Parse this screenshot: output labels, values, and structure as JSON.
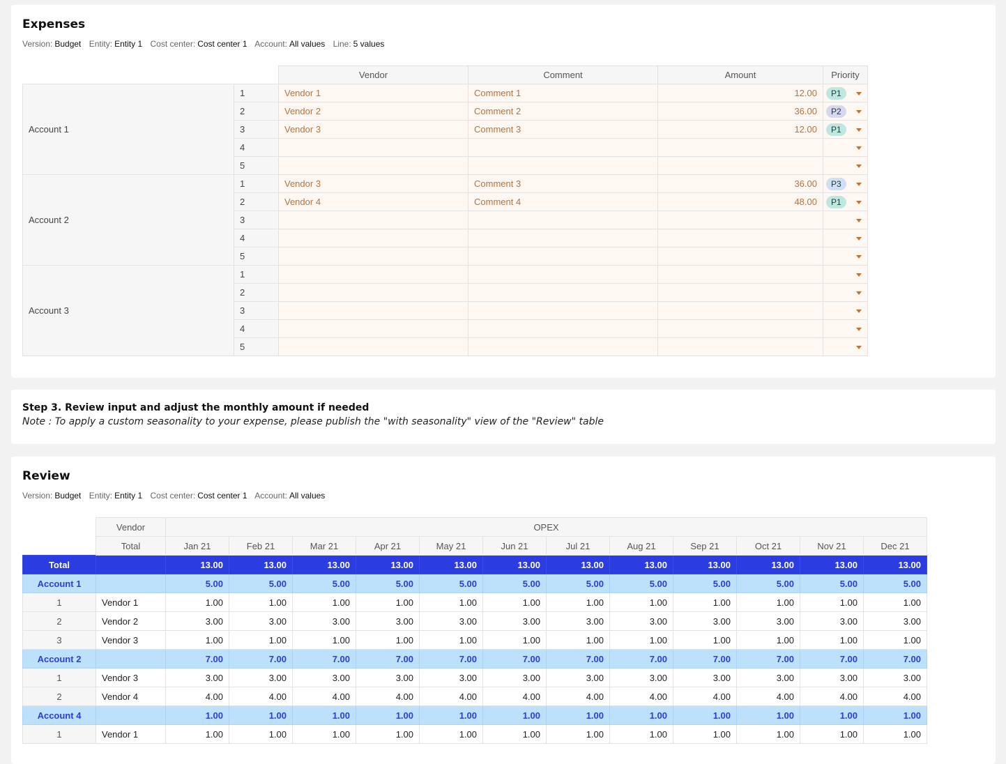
{
  "expenses": {
    "title": "Expenses",
    "filters": [
      {
        "label": "Version:",
        "value": "Budget"
      },
      {
        "label": "Entity:",
        "value": "Entity 1"
      },
      {
        "label": "Cost center:",
        "value": "Cost center 1"
      },
      {
        "label": "Account:",
        "value": "All values"
      },
      {
        "label": "Line:",
        "value": "5 values"
      }
    ],
    "columns": [
      "Vendor",
      "Comment",
      "Amount",
      "Priority"
    ],
    "accounts": [
      {
        "name": "Account 1",
        "lines": [
          {
            "line": "1",
            "vendor": "Vendor 1",
            "comment": "Comment 1",
            "amount": "12.00",
            "priority": "P1"
          },
          {
            "line": "2",
            "vendor": "Vendor 2",
            "comment": "Comment 2",
            "amount": "36.00",
            "priority": "P2"
          },
          {
            "line": "3",
            "vendor": "Vendor 3",
            "comment": "Comment 3",
            "amount": "12.00",
            "priority": "P1"
          },
          {
            "line": "4",
            "vendor": "",
            "comment": "",
            "amount": "",
            "priority": ""
          },
          {
            "line": "5",
            "vendor": "",
            "comment": "",
            "amount": "",
            "priority": ""
          }
        ]
      },
      {
        "name": "Account 2",
        "lines": [
          {
            "line": "1",
            "vendor": "Vendor 3",
            "comment": "Comment 3",
            "amount": "36.00",
            "priority": "P3"
          },
          {
            "line": "2",
            "vendor": "Vendor 4",
            "comment": "Comment 4",
            "amount": "48.00",
            "priority": "P1"
          },
          {
            "line": "3",
            "vendor": "",
            "comment": "",
            "amount": "",
            "priority": ""
          },
          {
            "line": "4",
            "vendor": "",
            "comment": "",
            "amount": "",
            "priority": ""
          },
          {
            "line": "5",
            "vendor": "",
            "comment": "",
            "amount": "",
            "priority": ""
          }
        ]
      },
      {
        "name": "Account 3",
        "lines": [
          {
            "line": "1",
            "vendor": "",
            "comment": "",
            "amount": "",
            "priority": ""
          },
          {
            "line": "2",
            "vendor": "",
            "comment": "",
            "amount": "",
            "priority": ""
          },
          {
            "line": "3",
            "vendor": "",
            "comment": "",
            "amount": "",
            "priority": ""
          },
          {
            "line": "4",
            "vendor": "",
            "comment": "",
            "amount": "",
            "priority": ""
          },
          {
            "line": "5",
            "vendor": "",
            "comment": "",
            "amount": "",
            "priority": ""
          }
        ]
      }
    ]
  },
  "step": {
    "title": "Step 3. Review input and adjust the monthly amount if needed",
    "note": "Note : To apply a custom seasonality to your expense, please publish the \"with seasonality\" view of the \"Review\" table"
  },
  "review": {
    "title": "Review",
    "filters": [
      {
        "label": "Version:",
        "value": "Budget"
      },
      {
        "label": "Entity:",
        "value": "Entity 1"
      },
      {
        "label": "Cost center:",
        "value": "Cost center 1"
      },
      {
        "label": "Account:",
        "value": "All values"
      }
    ],
    "vendor_header": "Vendor",
    "total_header": "Total",
    "group_header": "OPEX",
    "months": [
      "Jan 21",
      "Feb 21",
      "Mar 21",
      "Apr 21",
      "May 21",
      "Jun 21",
      "Jul 21",
      "Aug 21",
      "Sep 21",
      "Oct 21",
      "Nov 21",
      "Dec 21"
    ],
    "rows": [
      {
        "kind": "total",
        "label": "Total",
        "vendor": "",
        "values": [
          "13.00",
          "13.00",
          "13.00",
          "13.00",
          "13.00",
          "13.00",
          "13.00",
          "13.00",
          "13.00",
          "13.00",
          "13.00",
          "13.00"
        ]
      },
      {
        "kind": "acct",
        "label": "Account 1",
        "vendor": "",
        "values": [
          "5.00",
          "5.00",
          "5.00",
          "5.00",
          "5.00",
          "5.00",
          "5.00",
          "5.00",
          "5.00",
          "5.00",
          "5.00",
          "5.00"
        ]
      },
      {
        "kind": "line",
        "label": "1",
        "vendor": "Vendor 1",
        "values": [
          "1.00",
          "1.00",
          "1.00",
          "1.00",
          "1.00",
          "1.00",
          "1.00",
          "1.00",
          "1.00",
          "1.00",
          "1.00",
          "1.00"
        ]
      },
      {
        "kind": "line",
        "label": "2",
        "vendor": "Vendor 2",
        "values": [
          "3.00",
          "3.00",
          "3.00",
          "3.00",
          "3.00",
          "3.00",
          "3.00",
          "3.00",
          "3.00",
          "3.00",
          "3.00",
          "3.00"
        ]
      },
      {
        "kind": "line",
        "label": "3",
        "vendor": "Vendor 3",
        "values": [
          "1.00",
          "1.00",
          "1.00",
          "1.00",
          "1.00",
          "1.00",
          "1.00",
          "1.00",
          "1.00",
          "1.00",
          "1.00",
          "1.00"
        ]
      },
      {
        "kind": "acct",
        "label": "Account 2",
        "vendor": "",
        "values": [
          "7.00",
          "7.00",
          "7.00",
          "7.00",
          "7.00",
          "7.00",
          "7.00",
          "7.00",
          "7.00",
          "7.00",
          "7.00",
          "7.00"
        ]
      },
      {
        "kind": "line",
        "label": "1",
        "vendor": "Vendor 3",
        "values": [
          "3.00",
          "3.00",
          "3.00",
          "3.00",
          "3.00",
          "3.00",
          "3.00",
          "3.00",
          "3.00",
          "3.00",
          "3.00",
          "3.00"
        ]
      },
      {
        "kind": "line",
        "label": "2",
        "vendor": "Vendor 4",
        "values": [
          "4.00",
          "4.00",
          "4.00",
          "4.00",
          "4.00",
          "4.00",
          "4.00",
          "4.00",
          "4.00",
          "4.00",
          "4.00",
          "4.00"
        ]
      },
      {
        "kind": "acct",
        "label": "Account 4",
        "vendor": "",
        "values": [
          "1.00",
          "1.00",
          "1.00",
          "1.00",
          "1.00",
          "1.00",
          "1.00",
          "1.00",
          "1.00",
          "1.00",
          "1.00",
          "1.00"
        ]
      },
      {
        "kind": "line",
        "label": "1",
        "vendor": "Vendor 1",
        "values": [
          "1.00",
          "1.00",
          "1.00",
          "1.00",
          "1.00",
          "1.00",
          "1.00",
          "1.00",
          "1.00",
          "1.00",
          "1.00",
          "1.00"
        ]
      }
    ]
  }
}
